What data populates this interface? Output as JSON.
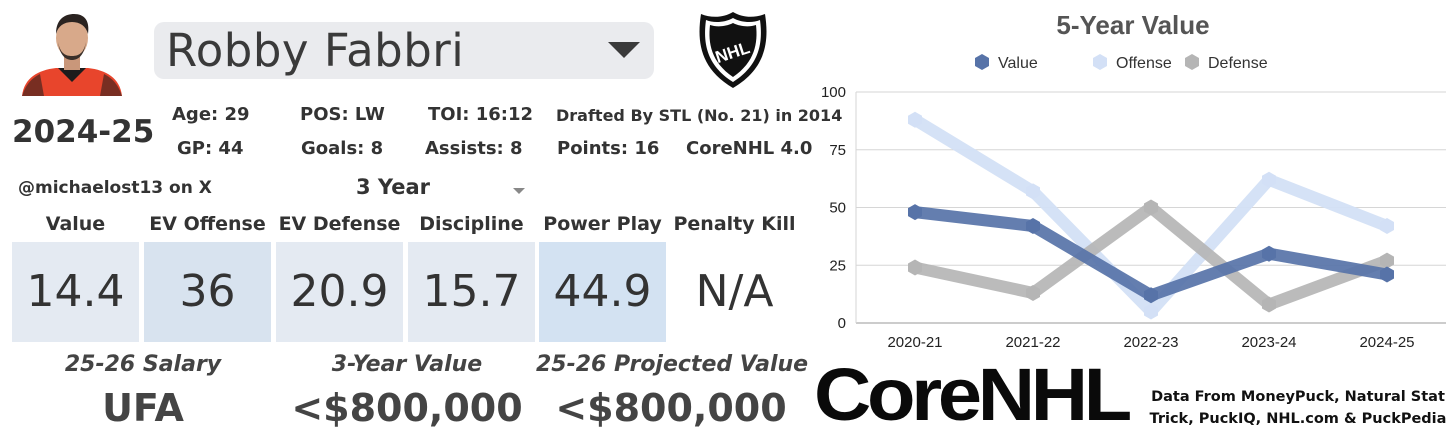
{
  "player": {
    "name": "Robby Fabbri",
    "season": "2024-25",
    "handle": "@michaelost13 on X",
    "period": "3 Year"
  },
  "stats": {
    "age": "Age: 29",
    "gp": "GP: 44",
    "pos": "POS: LW",
    "goals": "Goals: 8",
    "toi": "TOI: 16:12",
    "assists": "Assists: 8",
    "drafted": "Drafted By STL (No. 21) in 2014",
    "points": "Points: 16",
    "corenhl": "CoreNHL 4.0"
  },
  "categories": [
    {
      "label": "Value",
      "value": "14.4",
      "color": "#e4eaf2"
    },
    {
      "label": "EV Offense",
      "value": "36",
      "color": "#d8e3ef"
    },
    {
      "label": "EV Defense",
      "value": "20.9",
      "color": "#e4eaf2"
    },
    {
      "label": "Discipline",
      "value": "15.7",
      "color": "#e4eaf2"
    },
    {
      "label": "Power Play",
      "value": "44.9",
      "color": "#d3e2f2"
    },
    {
      "label": "Penalty Kill",
      "value": "N/A",
      "color": "#ffffff"
    }
  ],
  "footer": {
    "salary_label": "25-26 Salary",
    "salary_value": "UFA",
    "three_year_label": "3-Year Value",
    "three_year_value": "<$800,000",
    "projected_label": "25-26 Projected Value",
    "projected_value": "<$800,000"
  },
  "brand": {
    "wordmark": "CoreNHL",
    "nhl_logo_text": "NHL"
  },
  "credits": {
    "line1": "Data From MoneyPuck, Natural Stat",
    "line2": "Trick, PuckIQ, NHL.com & PuckPedia"
  },
  "chart_data": {
    "type": "line",
    "title": "5-Year Value",
    "categories": [
      "2020-21",
      "2021-22",
      "2022-23",
      "2023-24",
      "2024-25"
    ],
    "ylim": [
      0,
      100
    ],
    "yticks": [
      0,
      25,
      50,
      75,
      100
    ],
    "grid": true,
    "legend": "top",
    "series": [
      {
        "name": "Value",
        "color": "#5773a8",
        "values": [
          48,
          42,
          12,
          30,
          21
        ]
      },
      {
        "name": "Offense",
        "color": "#d3e0f6",
        "values": [
          88,
          57,
          5,
          62,
          42
        ]
      },
      {
        "name": "Defense",
        "color": "#b5b5b5",
        "values": [
          24,
          13,
          50,
          8,
          27
        ]
      }
    ]
  }
}
